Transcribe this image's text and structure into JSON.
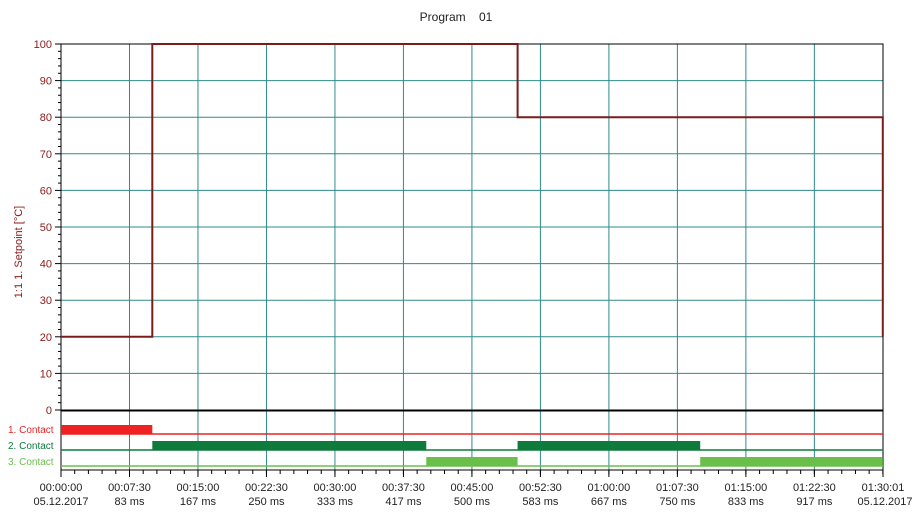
{
  "chart_data": {
    "type": "line",
    "title": "Program    01",
    "ylabel": "1:1 1. Setpoint [°C]",
    "ylim": [
      0,
      100
    ],
    "y_ticks": [
      0,
      10,
      20,
      30,
      40,
      50,
      60,
      70,
      80,
      90,
      100
    ],
    "grid": true,
    "x_unit": "minutes",
    "xlim": [
      0,
      90.0167
    ],
    "x_ticks": [
      {
        "x": 0,
        "time": "00:00:00",
        "sub": "05.12.2017"
      },
      {
        "x": 7.5,
        "time": "00:07:30",
        "sub": "83 ms"
      },
      {
        "x": 15,
        "time": "00:15:00",
        "sub": "167 ms"
      },
      {
        "x": 22.5,
        "time": "00:22:30",
        "sub": "250 ms"
      },
      {
        "x": 30,
        "time": "00:30:00",
        "sub": "333 ms"
      },
      {
        "x": 37.5,
        "time": "00:37:30",
        "sub": "417 ms"
      },
      {
        "x": 45,
        "time": "00:45:00",
        "sub": "500 ms"
      },
      {
        "x": 52.5,
        "time": "00:52:30",
        "sub": "583 ms"
      },
      {
        "x": 60,
        "time": "01:00:00",
        "sub": "667 ms"
      },
      {
        "x": 67.5,
        "time": "01:07:30",
        "sub": "750 ms"
      },
      {
        "x": 75,
        "time": "01:15:00",
        "sub": "833 ms"
      },
      {
        "x": 82.5,
        "time": "01:22:30",
        "sub": "917 ms"
      },
      {
        "x": 90.0167,
        "time": "01:30:01",
        "sub": "05.12.2017"
      }
    ],
    "series": [
      {
        "color": "#7b1c1c",
        "points": [
          [
            0,
            20
          ],
          [
            10,
            20
          ],
          [
            10,
            100
          ],
          [
            50,
            100
          ],
          [
            50,
            80
          ],
          [
            90,
            80
          ],
          [
            90,
            20
          ]
        ]
      }
    ],
    "contacts": [
      {
        "label": "1. Contact",
        "color": "#ee2222",
        "on_intervals": [
          [
            0,
            10
          ]
        ]
      },
      {
        "label": "2. Contact",
        "color": "#0e7a3c",
        "on_intervals": [
          [
            10,
            40
          ],
          [
            50,
            70
          ]
        ]
      },
      {
        "label": "3. Contact",
        "color": "#6abf4b",
        "on_intervals": [
          [
            40,
            50
          ],
          [
            70,
            90
          ]
        ]
      }
    ]
  }
}
